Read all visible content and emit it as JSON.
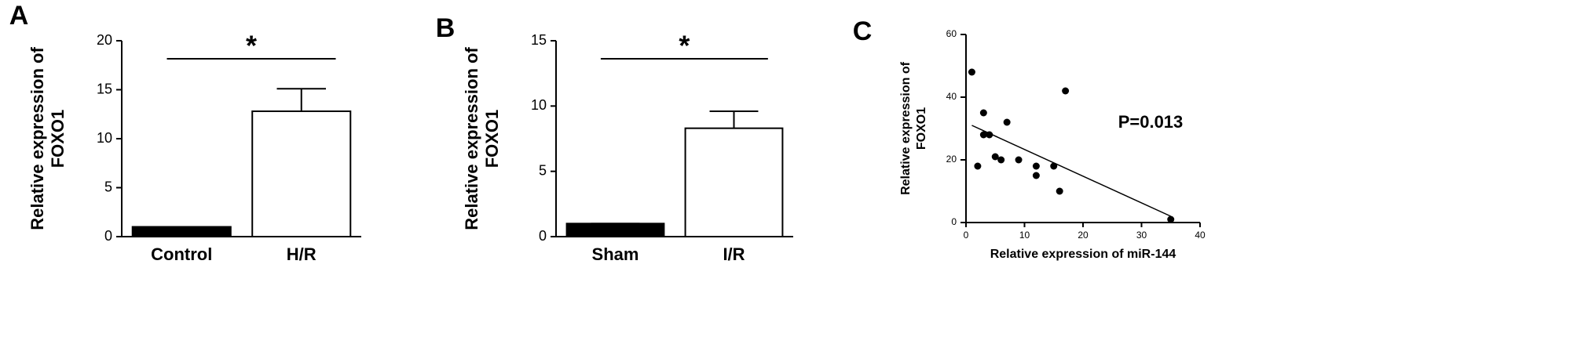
{
  "chart_data": [
    {
      "type": "bar",
      "panel_label": "A",
      "y_label": [
        "Relative expression of",
        "FOXO1"
      ],
      "categories": [
        "Control",
        "H/R"
      ],
      "values": [
        1,
        12.8
      ],
      "errors": [
        0,
        2.3
      ],
      "colors": [
        "#000000",
        "#ffffff"
      ],
      "ylim": [
        0,
        20
      ],
      "yticks": [
        0,
        5,
        10,
        15,
        20
      ],
      "annotation": "*"
    },
    {
      "type": "bar",
      "panel_label": "B",
      "y_label": [
        "Relative expression of",
        "FOXO1"
      ],
      "categories": [
        "Sham",
        "I/R"
      ],
      "values": [
        1,
        8.3
      ],
      "errors": [
        0,
        1.3
      ],
      "colors": [
        "#000000",
        "#ffffff"
      ],
      "ylim": [
        0,
        15
      ],
      "yticks": [
        0,
        5,
        10,
        15
      ],
      "annotation": "*"
    },
    {
      "type": "scatter",
      "panel_label": "C",
      "y_label": [
        "Relative expression of",
        "FOXO1"
      ],
      "x_label": "Relative expression of miR-144",
      "x": [
        1,
        2,
        3,
        3,
        4,
        5,
        6,
        7,
        9,
        12,
        12,
        15,
        16,
        17,
        35
      ],
      "y": [
        48,
        18,
        35,
        28,
        28,
        21,
        20,
        32,
        20,
        18,
        15,
        18,
        10,
        42,
        1
      ],
      "trendline": {
        "x": [
          1,
          35
        ],
        "y": [
          31,
          2
        ]
      },
      "xlim": [
        0,
        40
      ],
      "xticks": [
        0,
        10,
        20,
        30,
        40
      ],
      "ylim": [
        0,
        60
      ],
      "yticks": [
        0,
        20,
        40,
        60
      ],
      "color": "#000000",
      "annotation": "P=0.013"
    }
  ]
}
